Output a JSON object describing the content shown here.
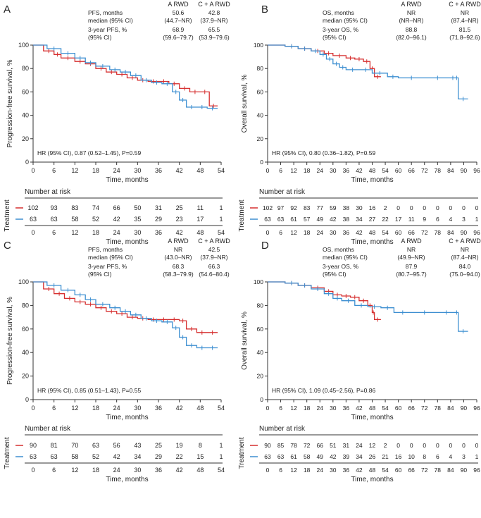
{
  "colors": {
    "a_rwd": "#d62f2f",
    "ca_rwd": "#3d8fd1",
    "axis": "#333333"
  },
  "chart_data": [
    {
      "panel": "A",
      "type": "line",
      "subtype": "kaplan-meier",
      "ylabel": "Progression-free survival, %",
      "xlabel": "Time, months",
      "xticks": [
        0,
        6,
        12,
        18,
        24,
        30,
        36,
        42,
        48,
        54
      ],
      "xlim": [
        0,
        54
      ],
      "yticks": [
        0,
        20,
        40,
        60,
        80,
        100
      ],
      "ylim": [
        0,
        100
      ],
      "legend_header": {
        "a": "A RWD",
        "ca": "C + A RWD"
      },
      "stats": [
        {
          "label1": "PFS, months",
          "label2": "median (95% CI)",
          "a1": "50.6",
          "a2": "(44.7–NR)",
          "c1": "42.8",
          "c2": "(37.9–NR)"
        },
        {
          "label1": "3-year PFS, %",
          "label2": "(95% CI)",
          "a1": "68.9",
          "a2": "(59.6–79.7)",
          "c1": "65.5",
          "c2": "(53.9–79.6)"
        }
      ],
      "hr_text": "HR (95% CI), 0.87 (0.52–1.45), P=0.59",
      "series": [
        {
          "name": "A RWD",
          "color": "#d62f2f",
          "x": [
            0,
            3,
            6,
            8,
            12,
            15,
            18,
            21,
            24,
            27,
            30,
            33,
            36,
            39,
            42,
            45,
            48,
            50.6,
            53
          ],
          "y": [
            100,
            95,
            92,
            89,
            86,
            84,
            80,
            77,
            75,
            72,
            70,
            69,
            69,
            67,
            63,
            60,
            60,
            48,
            48
          ]
        },
        {
          "name": "C + A RWD",
          "color": "#3d8fd1",
          "x": [
            0,
            4,
            8,
            12,
            15,
            18,
            22,
            25,
            28,
            31,
            34,
            37,
            40,
            42,
            44,
            47,
            50,
            53
          ],
          "y": [
            100,
            97,
            93,
            89,
            85,
            82,
            79,
            77,
            74,
            70,
            68,
            67,
            60,
            53,
            47,
            47,
            46,
            46
          ]
        }
      ],
      "risk": {
        "title": "Number at risk",
        "side_label": "Treatment",
        "x": [
          0,
          6,
          12,
          18,
          24,
          30,
          36,
          42,
          48,
          54
        ],
        "a": [
          "102",
          "93",
          "83",
          "74",
          "66",
          "50",
          "31",
          "25",
          "11",
          "1"
        ],
        "ca": [
          "63",
          "63",
          "58",
          "52",
          "42",
          "35",
          "29",
          "23",
          "17",
          "1"
        ]
      }
    },
    {
      "panel": "B",
      "type": "line",
      "subtype": "kaplan-meier",
      "ylabel": "Overall survival, %",
      "xlabel": "Time, months",
      "xticks": [
        0,
        6,
        12,
        18,
        24,
        30,
        36,
        42,
        48,
        54,
        60,
        66,
        72,
        78,
        84,
        90,
        96
      ],
      "xlim": [
        0,
        96
      ],
      "yticks": [
        0,
        20,
        40,
        60,
        80,
        100
      ],
      "ylim": [
        0,
        100
      ],
      "legend_header": {
        "a": "A RWD",
        "ca": "C + A RWD"
      },
      "stats": [
        {
          "label1": "OS, months",
          "label2": "median (95% CI)",
          "a1": "NR",
          "a2": "(NR–NR)",
          "c1": "NR",
          "c2": "(87.4–NR)"
        },
        {
          "label1": "3-year OS, %",
          "label2": "(95% CI)",
          "a1": "88.8",
          "a2": "(82.0–96.1)",
          "c1": "81.5",
          "c2": "(71.8–92.6)"
        }
      ],
      "hr_text": "HR (95% CI), 0.80 (0.36–1.82), P=0.59",
      "series": [
        {
          "name": "A RWD",
          "color": "#d62f2f",
          "x": [
            0,
            8,
            14,
            20,
            26,
            30,
            36,
            40,
            44,
            47,
            49,
            52
          ],
          "y": [
            100,
            99,
            97,
            95,
            93,
            91,
            89,
            88,
            86,
            80,
            73,
            73
          ]
        },
        {
          "name": "C + A RWD",
          "color": "#3d8fd1",
          "x": [
            0,
            8,
            14,
            20,
            24,
            27,
            30,
            33,
            36,
            42,
            48,
            55,
            60,
            72,
            84,
            86,
            87.5,
            92
          ],
          "y": [
            100,
            99,
            97,
            95,
            92,
            88,
            84,
            81,
            79,
            79,
            76,
            73,
            72,
            72,
            72,
            72,
            54,
            54
          ]
        }
      ],
      "risk": {
        "title": "Number at risk",
        "side_label": "Treatment",
        "x": [
          0,
          6,
          12,
          18,
          24,
          30,
          36,
          42,
          48,
          54,
          60,
          66,
          72,
          78,
          84,
          90,
          96
        ],
        "a": [
          "102",
          "97",
          "92",
          "83",
          "77",
          "59",
          "38",
          "30",
          "16",
          "2",
          "0",
          "0",
          "0",
          "0",
          "0",
          "0",
          "0"
        ],
        "ca": [
          "63",
          "63",
          "61",
          "57",
          "49",
          "42",
          "38",
          "34",
          "27",
          "22",
          "17",
          "11",
          "9",
          "6",
          "4",
          "3",
          "1"
        ]
      }
    },
    {
      "panel": "C",
      "type": "line",
      "subtype": "kaplan-meier",
      "ylabel": "Progression-free survival, %",
      "xlabel": "Time, months",
      "xticks": [
        0,
        6,
        12,
        18,
        24,
        30,
        36,
        42,
        48,
        54
      ],
      "xlim": [
        0,
        54
      ],
      "yticks": [
        0,
        20,
        40,
        60,
        80,
        100
      ],
      "ylim": [
        0,
        100
      ],
      "legend_header": {
        "a": "A RWD",
        "ca": "C + A RWD"
      },
      "stats": [
        {
          "label1": "PFS, months",
          "label2": "median (95% CI)",
          "a1": "NR",
          "a2": "(43.0–NR)",
          "c1": "42.5",
          "c2": "(37.9–NR)"
        },
        {
          "label1": "3-year PFS, %",
          "label2": "(95% CI)",
          "a1": "68.3",
          "a2": "(58.3–79.9)",
          "c1": "66.3",
          "c2": "(54.6–80.4)"
        }
      ],
      "hr_text": "HR (95% CI), 0.85 (0.51–1.43), P=0.55",
      "series": [
        {
          "name": "A RWD",
          "color": "#d62f2f",
          "x": [
            0,
            3,
            6,
            9,
            12,
            15,
            18,
            21,
            24,
            27,
            30,
            33,
            36,
            39,
            42,
            44,
            47,
            50,
            53
          ],
          "y": [
            100,
            94,
            90,
            86,
            83,
            81,
            78,
            75,
            73,
            70,
            69,
            68,
            68,
            68,
            67,
            60,
            57,
            57,
            57
          ]
        },
        {
          "name": "C + A RWD",
          "color": "#3d8fd1",
          "x": [
            0,
            4,
            8,
            12,
            15,
            18,
            22,
            25,
            28,
            31,
            34,
            37,
            40,
            42,
            44,
            47,
            50,
            53
          ],
          "y": [
            100,
            97,
            93,
            89,
            85,
            81,
            78,
            75,
            72,
            69,
            67,
            66,
            61,
            53,
            46,
            44,
            44,
            44
          ]
        }
      ],
      "risk": {
        "title": "Number at risk",
        "side_label": "Treatment",
        "x": [
          0,
          6,
          12,
          18,
          24,
          30,
          36,
          42,
          48,
          54
        ],
        "a": [
          "90",
          "81",
          "70",
          "63",
          "56",
          "43",
          "25",
          "19",
          "8",
          "1"
        ],
        "ca": [
          "63",
          "63",
          "58",
          "52",
          "42",
          "34",
          "29",
          "22",
          "15",
          "1"
        ]
      }
    },
    {
      "panel": "D",
      "type": "line",
      "subtype": "kaplan-meier",
      "ylabel": "Overall survival, %",
      "xlabel": "Time, months",
      "xticks": [
        0,
        6,
        12,
        18,
        24,
        30,
        36,
        42,
        48,
        54,
        60,
        66,
        72,
        78,
        84,
        90,
        96
      ],
      "xlim": [
        0,
        96
      ],
      "yticks": [
        0,
        20,
        40,
        60,
        80,
        100
      ],
      "ylim": [
        0,
        100
      ],
      "legend_header": {
        "a": "A RWD",
        "ca": "C + A RWD"
      },
      "stats": [
        {
          "label1": "OS, months",
          "label2": "median (95% CI)",
          "a1": "NR",
          "a2": "(49.9–NR)",
          "c1": "NR",
          "c2": "(87.4–NR)"
        },
        {
          "label1": "3-year OS, %",
          "label2": "(95% CI)",
          "a1": "87.9",
          "a2": "(80.7–95.7)",
          "c1": "84.0",
          "c2": "(75.0–94.0)"
        }
      ],
      "hr_text": "HR (95% CI), 1.09 (0.45–2.56), P=0.86",
      "series": [
        {
          "name": "A RWD",
          "color": "#d62f2f",
          "x": [
            0,
            8,
            14,
            20,
            26,
            30,
            34,
            38,
            42,
            46,
            48,
            49,
            52
          ],
          "y": [
            100,
            99,
            97,
            95,
            92,
            89,
            88,
            87,
            84,
            80,
            74,
            68,
            68
          ]
        },
        {
          "name": "C + A RWD",
          "color": "#3d8fd1",
          "x": [
            0,
            8,
            14,
            20,
            26,
            30,
            34,
            40,
            46,
            52,
            58,
            66,
            78,
            86,
            87.5,
            92
          ],
          "y": [
            100,
            99,
            97,
            94,
            90,
            86,
            84,
            80,
            79,
            78,
            74,
            74,
            74,
            74,
            58,
            58
          ]
        }
      ],
      "risk": {
        "title": "Number at risk",
        "side_label": "Treatment",
        "x": [
          0,
          6,
          12,
          18,
          24,
          30,
          36,
          42,
          48,
          54,
          60,
          66,
          72,
          78,
          84,
          90,
          96
        ],
        "a": [
          "90",
          "85",
          "78",
          "72",
          "66",
          "51",
          "31",
          "24",
          "12",
          "2",
          "0",
          "0",
          "0",
          "0",
          "0",
          "0",
          "0"
        ],
        "ca": [
          "63",
          "63",
          "61",
          "58",
          "49",
          "42",
          "39",
          "34",
          "26",
          "21",
          "16",
          "10",
          "8",
          "6",
          "4",
          "3",
          "1"
        ]
      }
    }
  ]
}
